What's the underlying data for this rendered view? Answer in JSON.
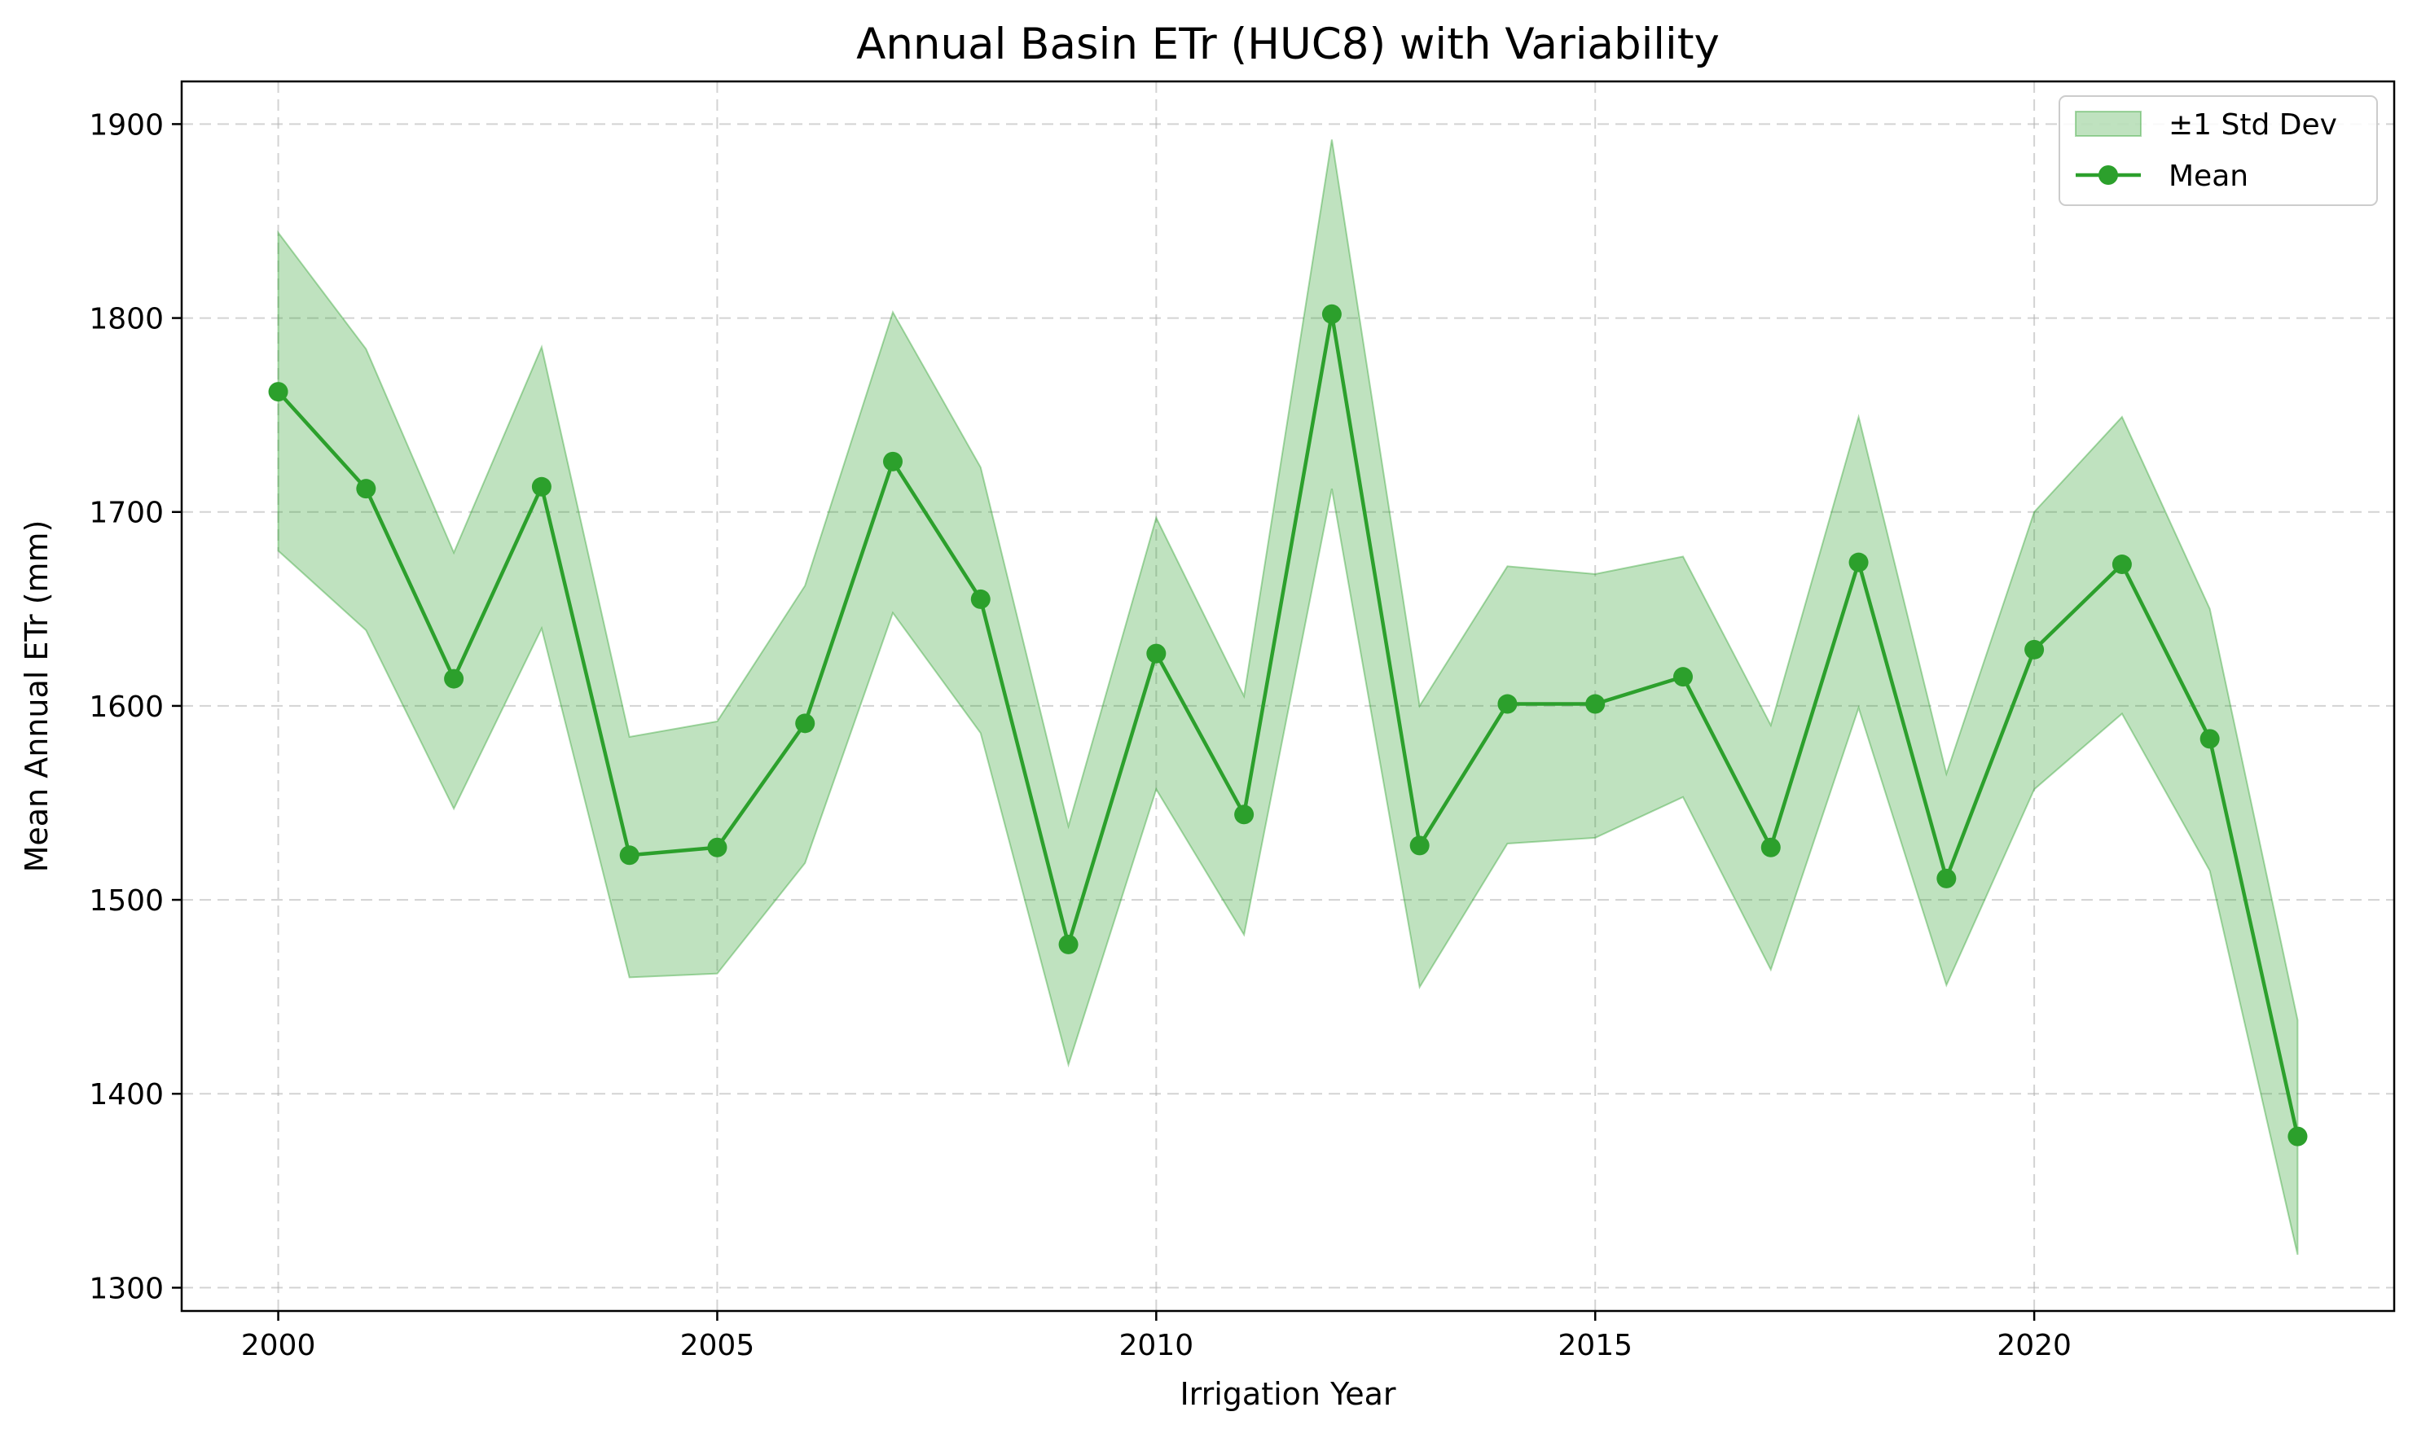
{
  "chart_data": {
    "type": "line",
    "title": "Annual Basin ETr (HUC8) with Variability",
    "xlabel": "Irrigation Year",
    "ylabel": "Mean Annual ETr (mm)",
    "xlim": [
      1998.9,
      2024.1
    ],
    "ylim": [
      1288,
      1922
    ],
    "x_ticks": [
      2000,
      2005,
      2010,
      2015,
      2020
    ],
    "y_ticks": [
      1300,
      1400,
      1500,
      1600,
      1700,
      1800,
      1900
    ],
    "grid": true,
    "legend_position": "top-right",
    "x": [
      2000,
      2001,
      2002,
      2003,
      2004,
      2005,
      2006,
      2007,
      2008,
      2009,
      2010,
      2011,
      2012,
      2013,
      2014,
      2015,
      2016,
      2017,
      2018,
      2019,
      2020,
      2021,
      2022,
      2023
    ],
    "series": [
      {
        "name": "Mean",
        "color": "#2ca02c",
        "marker": "circle",
        "values": [
          1762,
          1712,
          1614,
          1713,
          1523,
          1527,
          1591,
          1726,
          1655,
          1477,
          1627,
          1544,
          1802,
          1528,
          1601,
          1601,
          1615,
          1527,
          1674,
          1511,
          1629,
          1673,
          1583,
          1378
        ]
      }
    ],
    "band": {
      "name": "±1 Std Dev",
      "color": "#2ca02c",
      "alpha": 0.3,
      "upper": [
        1844,
        1784,
        1679,
        1785,
        1584,
        1592,
        1662,
        1803,
        1723,
        1538,
        1697,
        1605,
        1892,
        1600,
        1672,
        1668,
        1677,
        1590,
        1749,
        1565,
        1700,
        1749,
        1650,
        1438
      ],
      "lower": [
        1680,
        1639,
        1547,
        1640,
        1460,
        1462,
        1519,
        1648,
        1586,
        1415,
        1557,
        1482,
        1712,
        1455,
        1529,
        1532,
        1553,
        1464,
        1599,
        1456,
        1557,
        1596,
        1515,
        1317
      ]
    }
  }
}
